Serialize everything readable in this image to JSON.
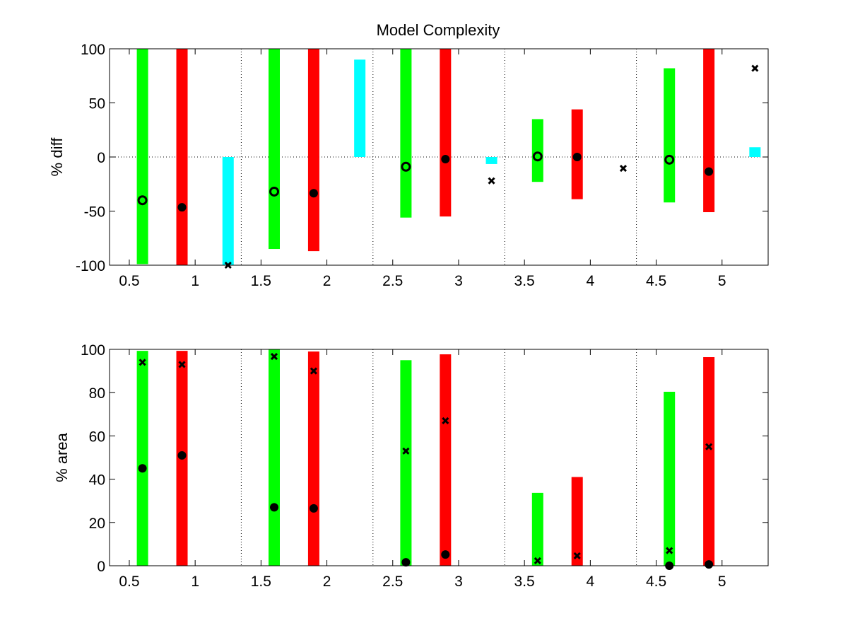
{
  "chart_data": [
    {
      "type": "bar",
      "title": "Model Complexity",
      "xlabel": "",
      "ylabel": "% diff",
      "xlim": [
        0.35,
        5.35
      ],
      "ylim": [
        -100,
        100
      ],
      "xticks": [
        "0.5",
        "1",
        "1.5",
        "2",
        "2.5",
        "3",
        "3.5",
        "4",
        "4.5",
        "5"
      ],
      "yticks": [
        "-100",
        "-50",
        "0",
        "50",
        "100"
      ],
      "separators": [
        1.35,
        2.35,
        3.35,
        4.35
      ],
      "zero_line": true,
      "colors": {
        "green": "#00ff00",
        "red": "#ff0000",
        "cyan": "#00ffff"
      },
      "bars": [
        {
          "x": 0.6,
          "color": "green",
          "low": -99,
          "high": 100
        },
        {
          "x": 0.9,
          "color": "red",
          "low": -100,
          "high": 100
        },
        {
          "x": 1.25,
          "color": "cyan",
          "low": -100,
          "high": 0
        },
        {
          "x": 1.6,
          "color": "green",
          "low": -85,
          "high": 100
        },
        {
          "x": 1.9,
          "color": "red",
          "low": -87,
          "high": 100
        },
        {
          "x": 2.25,
          "color": "cyan",
          "low": 0,
          "high": 90
        },
        {
          "x": 2.6,
          "color": "green",
          "low": -56,
          "high": 100
        },
        {
          "x": 2.9,
          "color": "red",
          "low": -55,
          "high": 100
        },
        {
          "x": 3.25,
          "color": "cyan",
          "low": -6.5,
          "high": 0
        },
        {
          "x": 3.6,
          "color": "green",
          "low": -23,
          "high": 35
        },
        {
          "x": 3.9,
          "color": "red",
          "low": -39,
          "high": 44
        },
        {
          "x": 4.6,
          "color": "green",
          "low": -42,
          "high": 82
        },
        {
          "x": 4.9,
          "color": "red",
          "low": -51,
          "high": 100
        },
        {
          "x": 5.25,
          "color": "cyan",
          "low": 0,
          "high": 9
        }
      ],
      "markers": [
        {
          "x": 0.6,
          "y": -40,
          "type": "o"
        },
        {
          "x": 0.9,
          "y": -46.5,
          "type": "dot"
        },
        {
          "x": 1.25,
          "y": -100,
          "type": "x"
        },
        {
          "x": 1.6,
          "y": -32,
          "type": "o"
        },
        {
          "x": 1.9,
          "y": -33.5,
          "type": "dot"
        },
        {
          "x": 2.6,
          "y": -9,
          "type": "o"
        },
        {
          "x": 2.9,
          "y": -2,
          "type": "dot"
        },
        {
          "x": 3.25,
          "y": -22,
          "type": "x"
        },
        {
          "x": 3.6,
          "y": 0.5,
          "type": "o"
        },
        {
          "x": 3.9,
          "y": 0,
          "type": "dot"
        },
        {
          "x": 4.25,
          "y": -10.5,
          "type": "x"
        },
        {
          "x": 4.6,
          "y": -2.5,
          "type": "o"
        },
        {
          "x": 4.9,
          "y": -13.5,
          "type": "dot"
        },
        {
          "x": 5.25,
          "y": 82,
          "type": "x"
        }
      ]
    },
    {
      "type": "bar",
      "title": "",
      "xlabel": "",
      "ylabel": "% area",
      "xlim": [
        0.35,
        5.35
      ],
      "ylim": [
        0,
        100
      ],
      "xticks": [
        "0.5",
        "1",
        "1.5",
        "2",
        "2.5",
        "3",
        "3.5",
        "4",
        "4.5",
        "5"
      ],
      "yticks": [
        "0",
        "20",
        "40",
        "60",
        "80",
        "100"
      ],
      "separators": [
        1.35,
        2.35,
        3.35,
        4.35
      ],
      "zero_line": false,
      "colors": {
        "green": "#00ff00",
        "red": "#ff0000",
        "cyan": "#00ffff"
      },
      "bars": [
        {
          "x": 0.6,
          "color": "green",
          "low": 0,
          "high": 99.3
        },
        {
          "x": 0.9,
          "color": "red",
          "low": 0,
          "high": 99.3
        },
        {
          "x": 1.6,
          "color": "green",
          "low": 0,
          "high": 100
        },
        {
          "x": 1.9,
          "color": "red",
          "low": 0,
          "high": 99
        },
        {
          "x": 2.6,
          "color": "green",
          "low": 0,
          "high": 95
        },
        {
          "x": 2.9,
          "color": "red",
          "low": 0,
          "high": 97.7
        },
        {
          "x": 3.6,
          "color": "green",
          "low": 0,
          "high": 33.7
        },
        {
          "x": 3.9,
          "color": "red",
          "low": 0,
          "high": 41
        },
        {
          "x": 4.6,
          "color": "green",
          "low": 0,
          "high": 80.4
        },
        {
          "x": 4.9,
          "color": "red",
          "low": 0,
          "high": 96.4
        }
      ],
      "markers": [
        {
          "x": 0.6,
          "y": 45,
          "type": "dot"
        },
        {
          "x": 0.6,
          "y": 94,
          "type": "x"
        },
        {
          "x": 0.9,
          "y": 51,
          "type": "dot"
        },
        {
          "x": 0.9,
          "y": 93,
          "type": "x"
        },
        {
          "x": 1.6,
          "y": 27,
          "type": "dot"
        },
        {
          "x": 1.6,
          "y": 96.7,
          "type": "x"
        },
        {
          "x": 1.9,
          "y": 26.5,
          "type": "dot"
        },
        {
          "x": 1.9,
          "y": 90,
          "type": "x"
        },
        {
          "x": 2.6,
          "y": 1.6,
          "type": "dot"
        },
        {
          "x": 2.6,
          "y": 53,
          "type": "x"
        },
        {
          "x": 2.9,
          "y": 5.2,
          "type": "dot"
        },
        {
          "x": 2.9,
          "y": 67,
          "type": "x"
        },
        {
          "x": 3.6,
          "y": 2.3,
          "type": "x"
        },
        {
          "x": 3.9,
          "y": 4.6,
          "type": "x"
        },
        {
          "x": 4.6,
          "y": 0,
          "type": "dot"
        },
        {
          "x": 4.6,
          "y": 7,
          "type": "x"
        },
        {
          "x": 4.9,
          "y": 0.6,
          "type": "dot"
        },
        {
          "x": 4.9,
          "y": 55,
          "type": "x"
        }
      ]
    }
  ]
}
